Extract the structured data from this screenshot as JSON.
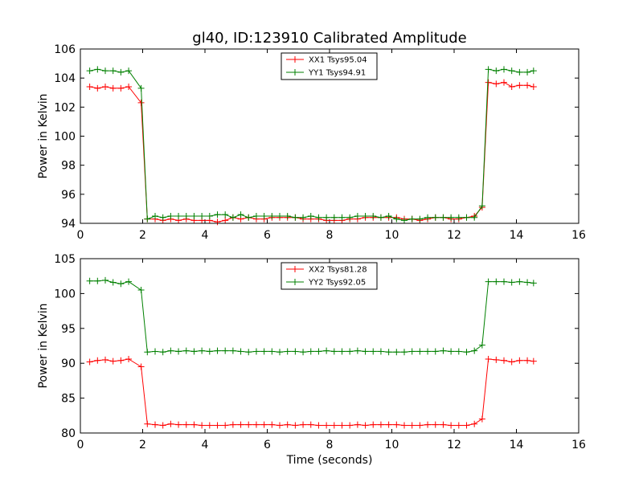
{
  "title": "gl40, ID:123910 Calibrated Amplitude",
  "chart_data": [
    {
      "type": "line",
      "xlabel": "",
      "ylabel": "Power in Kelvin",
      "xlim": [
        0,
        16
      ],
      "ylim": [
        94,
        106
      ],
      "xticks": [
        0,
        2,
        4,
        6,
        8,
        10,
        12,
        14,
        16
      ],
      "yticks": [
        94,
        96,
        98,
        100,
        102,
        104,
        106
      ],
      "grid": false,
      "legend": "top-center",
      "x": [
        0.3,
        0.55,
        0.8,
        1.05,
        1.3,
        1.55,
        1.95,
        2.15,
        2.4,
        2.65,
        2.9,
        3.15,
        3.4,
        3.65,
        3.9,
        4.15,
        4.4,
        4.65,
        4.9,
        5.15,
        5.4,
        5.65,
        5.9,
        6.15,
        6.4,
        6.65,
        6.9,
        7.15,
        7.4,
        7.65,
        7.9,
        8.15,
        8.4,
        8.65,
        8.9,
        9.15,
        9.4,
        9.65,
        9.9,
        10.15,
        10.4,
        10.65,
        10.9,
        11.15,
        11.4,
        11.65,
        11.9,
        12.15,
        12.4,
        12.65,
        12.9,
        13.1,
        13.35,
        13.6,
        13.85,
        14.1,
        14.35,
        14.55
      ],
      "series": [
        {
          "name": "XX1 Tsys95.04",
          "color": "#ff0000",
          "values": [
            103.4,
            103.3,
            103.4,
            103.3,
            103.3,
            103.4,
            102.3,
            94.3,
            94.3,
            94.2,
            94.3,
            94.2,
            94.3,
            94.2,
            94.2,
            94.2,
            94.1,
            94.2,
            94.4,
            94.3,
            94.4,
            94.3,
            94.3,
            94.4,
            94.4,
            94.4,
            94.4,
            94.3,
            94.3,
            94.3,
            94.2,
            94.2,
            94.2,
            94.3,
            94.3,
            94.4,
            94.4,
            94.4,
            94.4,
            94.4,
            94.3,
            94.3,
            94.2,
            94.3,
            94.4,
            94.4,
            94.3,
            94.3,
            94.4,
            94.5,
            95.1,
            103.7,
            103.6,
            103.7,
            103.4,
            103.5,
            103.5,
            103.4
          ]
        },
        {
          "name": "YY1 Tsys94.91",
          "color": "#008000",
          "values": [
            104.5,
            104.6,
            104.5,
            104.5,
            104.4,
            104.5,
            103.3,
            94.3,
            94.5,
            94.4,
            94.5,
            94.5,
            94.5,
            94.5,
            94.5,
            94.5,
            94.6,
            94.6,
            94.4,
            94.6,
            94.4,
            94.5,
            94.5,
            94.5,
            94.5,
            94.5,
            94.4,
            94.4,
            94.5,
            94.4,
            94.4,
            94.4,
            94.4,
            94.4,
            94.5,
            94.5,
            94.5,
            94.4,
            94.5,
            94.3,
            94.2,
            94.3,
            94.3,
            94.4,
            94.4,
            94.4,
            94.4,
            94.4,
            94.4,
            94.4,
            95.2,
            104.6,
            104.5,
            104.6,
            104.5,
            104.4,
            104.4,
            104.5
          ]
        }
      ]
    },
    {
      "type": "line",
      "xlabel": "Time (seconds)",
      "ylabel": "Power in Kelvin",
      "xlim": [
        0,
        16
      ],
      "ylim": [
        80,
        105
      ],
      "xticks": [
        0,
        2,
        4,
        6,
        8,
        10,
        12,
        14,
        16
      ],
      "yticks": [
        80,
        85,
        90,
        95,
        100,
        105
      ],
      "grid": false,
      "legend": "top-center",
      "x": [
        0.3,
        0.55,
        0.8,
        1.05,
        1.3,
        1.55,
        1.95,
        2.15,
        2.4,
        2.65,
        2.9,
        3.15,
        3.4,
        3.65,
        3.9,
        4.15,
        4.4,
        4.65,
        4.9,
        5.15,
        5.4,
        5.65,
        5.9,
        6.15,
        6.4,
        6.65,
        6.9,
        7.15,
        7.4,
        7.65,
        7.9,
        8.15,
        8.4,
        8.65,
        8.9,
        9.15,
        9.4,
        9.65,
        9.9,
        10.15,
        10.4,
        10.65,
        10.9,
        11.15,
        11.4,
        11.65,
        11.9,
        12.15,
        12.4,
        12.65,
        12.9,
        13.1,
        13.35,
        13.6,
        13.85,
        14.1,
        14.35,
        14.55
      ],
      "series": [
        {
          "name": "XX2 Tsys81.28",
          "color": "#ff0000",
          "values": [
            90.2,
            90.4,
            90.5,
            90.3,
            90.4,
            90.6,
            89.5,
            81.3,
            81.2,
            81.1,
            81.3,
            81.2,
            81.2,
            81.2,
            81.1,
            81.1,
            81.1,
            81.1,
            81.2,
            81.2,
            81.2,
            81.2,
            81.2,
            81.2,
            81.1,
            81.2,
            81.1,
            81.2,
            81.2,
            81.1,
            81.1,
            81.1,
            81.1,
            81.1,
            81.2,
            81.1,
            81.2,
            81.2,
            81.2,
            81.2,
            81.1,
            81.1,
            81.1,
            81.2,
            81.2,
            81.2,
            81.1,
            81.1,
            81.1,
            81.3,
            82.0,
            90.6,
            90.5,
            90.4,
            90.2,
            90.4,
            90.4,
            90.3
          ]
        },
        {
          "name": "YY2 Tsys92.05",
          "color": "#008000",
          "values": [
            101.8,
            101.8,
            101.9,
            101.6,
            101.4,
            101.7,
            100.5,
            91.6,
            91.7,
            91.6,
            91.8,
            91.7,
            91.8,
            91.7,
            91.8,
            91.7,
            91.8,
            91.8,
            91.8,
            91.7,
            91.6,
            91.7,
            91.7,
            91.7,
            91.6,
            91.7,
            91.7,
            91.6,
            91.7,
            91.7,
            91.8,
            91.7,
            91.7,
            91.7,
            91.8,
            91.7,
            91.7,
            91.7,
            91.6,
            91.6,
            91.6,
            91.7,
            91.7,
            91.7,
            91.7,
            91.8,
            91.7,
            91.7,
            91.6,
            91.8,
            92.6,
            101.7,
            101.7,
            101.7,
            101.6,
            101.7,
            101.6,
            101.5
          ]
        }
      ]
    }
  ]
}
